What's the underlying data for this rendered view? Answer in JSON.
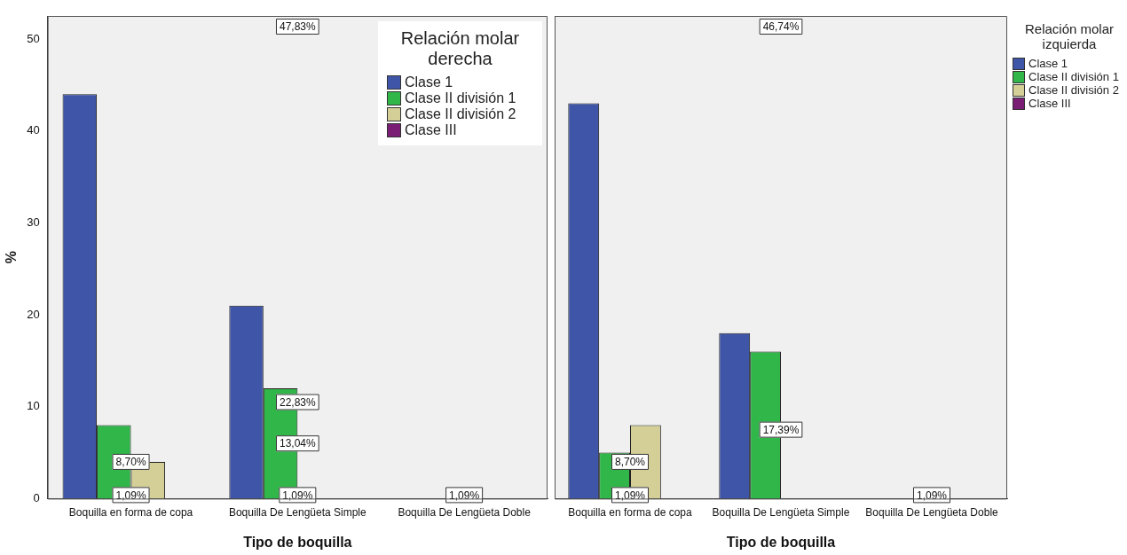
{
  "chart_data": [
    {
      "type": "bar",
      "xlabel": "Tipo de boquilla",
      "ylabel": "%",
      "legend_title": "Relación molar derecha",
      "legend": "top right",
      "categories": [
        "Boquilla en forma de copa",
        "Boquilla De Lengüeta Simple",
        "Boquilla De Lengüeta Doble"
      ],
      "series": [
        {
          "name": "Clase 1",
          "color": "#3f56a8",
          "values": [
            44,
            21,
            0
          ]
        },
        {
          "name": "Clase II división 1",
          "color": "#31b64a",
          "values": [
            8,
            12,
            0
          ]
        },
        {
          "name": "Clase II división 2",
          "color": "#d4cf97",
          "values": [
            4,
            0,
            0
          ]
        },
        {
          "name": "Clase III",
          "color": "#7a1e75",
          "values": [
            0,
            0,
            0
          ]
        }
      ],
      "annotations": [
        "47,83%",
        {
          "text": "8,70%",
          "x": "Boquilla en forma de copa",
          "y": 4
        },
        {
          "text": "1,09%",
          "x": "Boquilla en forma de copa",
          "y": 0
        },
        {
          "text": "22,83%",
          "x": "Boquilla De Lengüeta Simple",
          "y": 10.5
        },
        {
          "text": "13,04%",
          "x": "Boquilla De Lengüeta Simple",
          "y": 6
        },
        {
          "text": "1,09%",
          "x": "Boquilla De Lengüeta Simple",
          "y": 0
        },
        {
          "text": "1,09%",
          "x": "Boquilla De Lengüeta Doble",
          "y": 0
        }
      ],
      "ylim": [
        0,
        52.5
      ],
      "yticks": [
        0,
        10,
        20,
        30,
        40,
        50
      ],
      "grid": false
    },
    {
      "type": "bar",
      "xlabel": "Tipo de boquilla",
      "legend_title": "Relación molar izquierda",
      "legend": "right",
      "categories": [
        "Boquilla en forma de copa",
        "Boquilla De Lengüeta Simple",
        "Boquilla De Lengüeta Doble"
      ],
      "series": [
        {
          "name": "Clase 1",
          "color": "#3f56a8",
          "values": [
            43,
            18,
            0
          ]
        },
        {
          "name": "Clase II división 1",
          "color": "#31b64a",
          "values": [
            5,
            16,
            0
          ]
        },
        {
          "name": "Clase II división 2",
          "color": "#d4cf97",
          "values": [
            8,
            0,
            0
          ]
        },
        {
          "name": "Clase III",
          "color": "#7a1e75",
          "values": [
            0,
            0,
            0
          ]
        }
      ],
      "annotations": [
        "46,74%",
        {
          "text": "8,70%",
          "x": "Boquilla en forma de copa",
          "y": 4
        },
        {
          "text": "1,09%",
          "x": "Boquilla en forma de copa",
          "y": 0
        },
        {
          "text": "17,39%",
          "x": "Boquilla De Lengüeta Simple",
          "y": 7.5
        },
        {
          "text": "1,09%",
          "x": "Boquilla De Lengüeta Doble",
          "y": 0
        }
      ],
      "ylim": [
        0,
        52.5
      ],
      "yticks": [
        0,
        10,
        20,
        30,
        40,
        50
      ],
      "tick_labels": "x",
      "grid": false
    }
  ]
}
